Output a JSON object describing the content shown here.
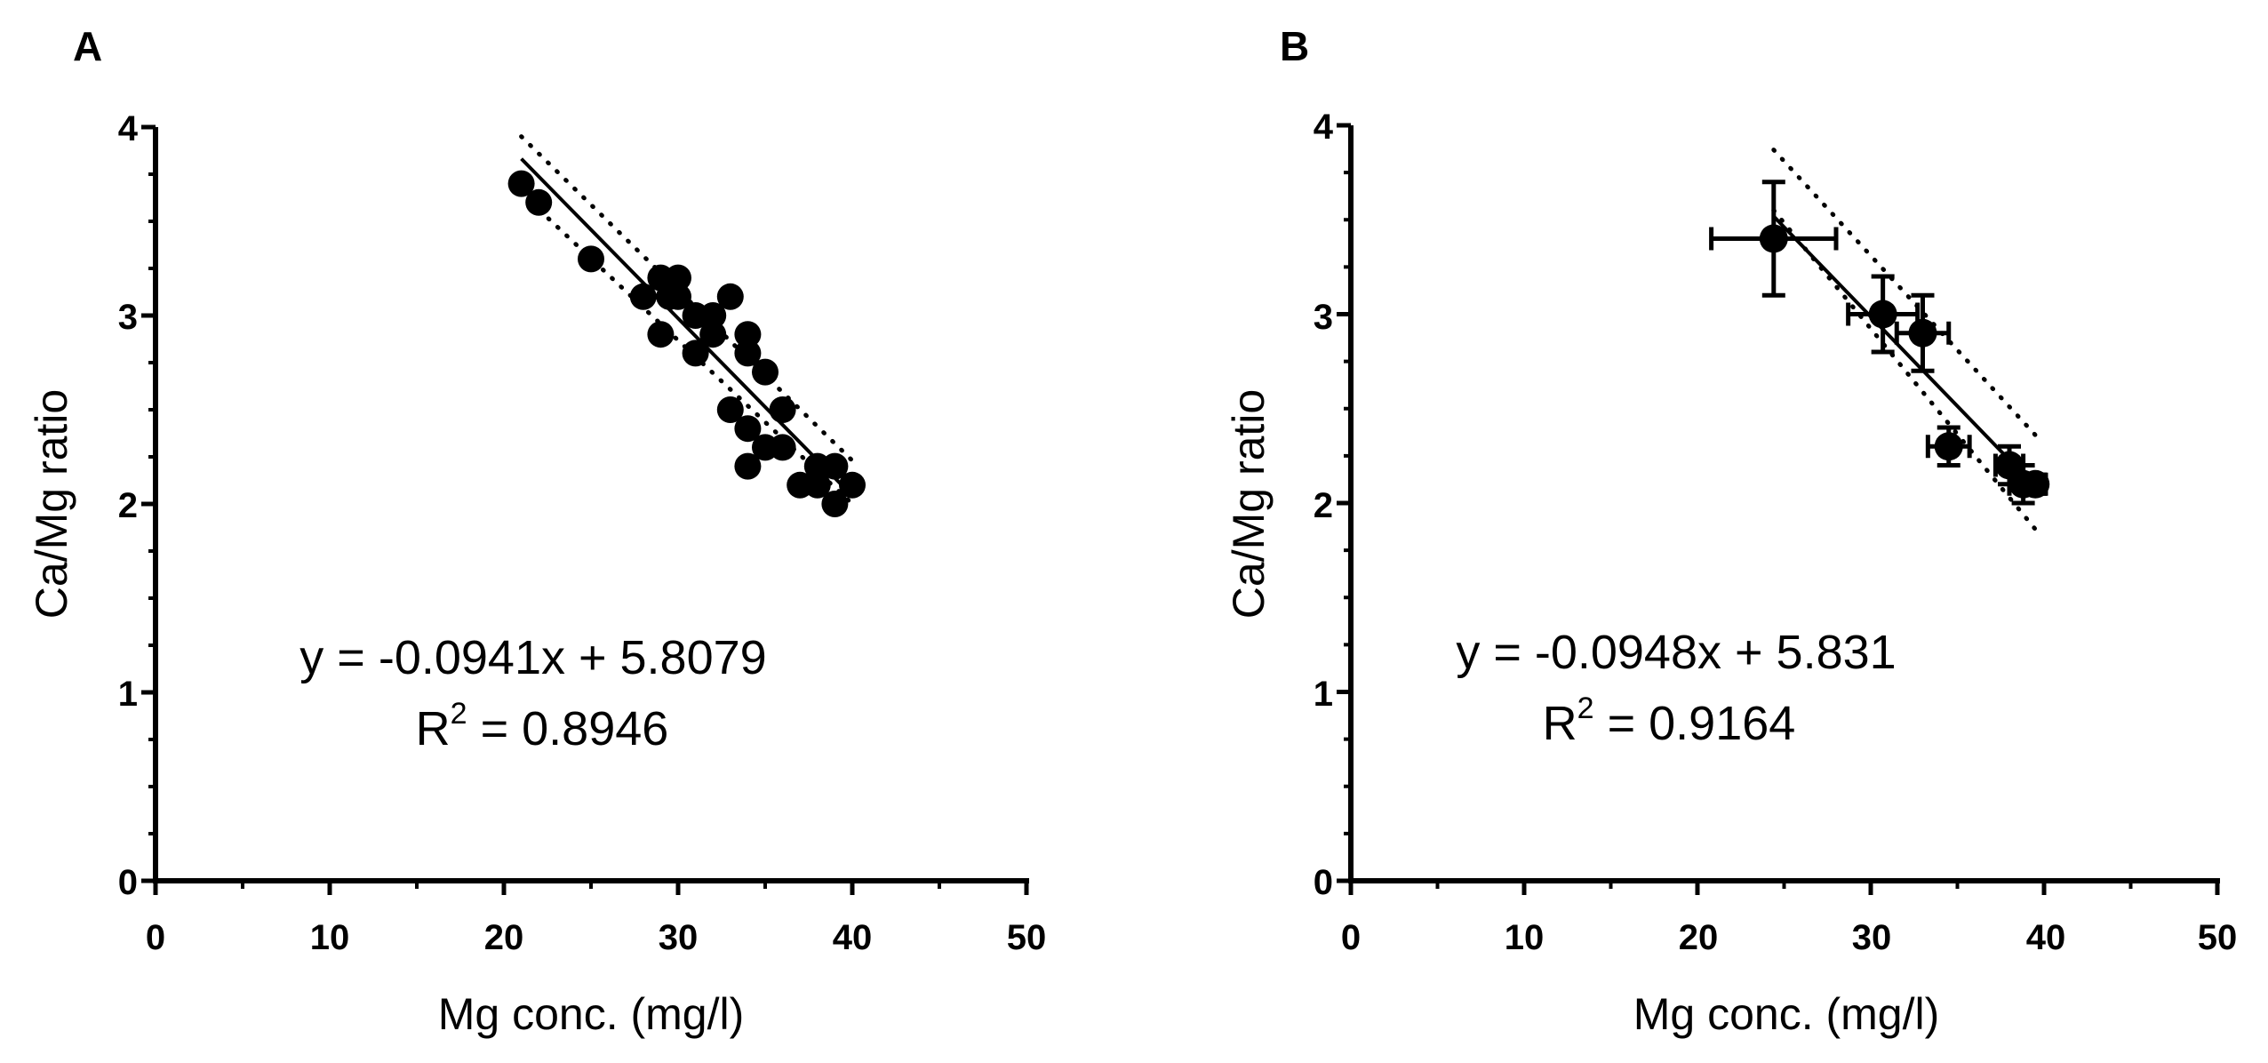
{
  "chart_data": [
    {
      "panel": "A",
      "type": "scatter",
      "xlabel": "Mg conc. (mg/l)",
      "ylabel": "Ca/Mg ratio",
      "xlim": [
        0,
        50
      ],
      "ylim": [
        0,
        4
      ],
      "x_ticks": [
        0,
        10,
        20,
        30,
        40,
        50
      ],
      "y_ticks": [
        0,
        1,
        2,
        3,
        4
      ],
      "points": [
        {
          "x": 21,
          "y": 3.7
        },
        {
          "x": 22,
          "y": 3.6
        },
        {
          "x": 25,
          "y": 3.3
        },
        {
          "x": 28,
          "y": 3.1
        },
        {
          "x": 29,
          "y": 3.2
        },
        {
          "x": 29,
          "y": 2.9
        },
        {
          "x": 29.5,
          "y": 3.1
        },
        {
          "x": 30,
          "y": 3.2
        },
        {
          "x": 30,
          "y": 3.1
        },
        {
          "x": 31,
          "y": 3.0
        },
        {
          "x": 31,
          "y": 2.8
        },
        {
          "x": 32,
          "y": 3.0
        },
        {
          "x": 32,
          "y": 2.9
        },
        {
          "x": 33,
          "y": 3.1
        },
        {
          "x": 33,
          "y": 2.5
        },
        {
          "x": 34,
          "y": 2.9
        },
        {
          "x": 34,
          "y": 2.8
        },
        {
          "x": 34,
          "y": 2.4
        },
        {
          "x": 34,
          "y": 2.2
        },
        {
          "x": 35,
          "y": 2.7
        },
        {
          "x": 35,
          "y": 2.3
        },
        {
          "x": 36,
          "y": 2.5
        },
        {
          "x": 36,
          "y": 2.3
        },
        {
          "x": 37,
          "y": 2.1
        },
        {
          "x": 38,
          "y": 2.2
        },
        {
          "x": 38,
          "y": 2.1
        },
        {
          "x": 39,
          "y": 2.2
        },
        {
          "x": 39,
          "y": 2.0
        },
        {
          "x": 40,
          "y": 2.1
        }
      ],
      "regression": {
        "slope": -0.0941,
        "intercept": 5.8079,
        "x_range": [
          21,
          40
        ]
      },
      "confidence_band": {
        "x": [
          21,
          40
        ],
        "upper": [
          3.95,
          2.23
        ],
        "lower": [
          3.65,
          2.0
        ]
      },
      "equation": "y = -0.0941x + 5.8079",
      "r2_label": "R",
      "r2_exp": "2",
      "r2_value": " = 0.8946"
    },
    {
      "panel": "B",
      "type": "scatter",
      "xlabel": "Mg conc. (mg/l)",
      "ylabel": "Ca/Mg ratio",
      "xlim": [
        0,
        50
      ],
      "ylim": [
        0,
        4
      ],
      "x_ticks": [
        0,
        10,
        20,
        30,
        40,
        50
      ],
      "y_ticks": [
        0,
        1,
        2,
        3,
        4
      ],
      "points": [
        {
          "x": 24.4,
          "y": 3.4,
          "xerr": 3.6,
          "yerr": 0.3
        },
        {
          "x": 30.7,
          "y": 3.0,
          "xerr": 2.0,
          "yerr": 0.2
        },
        {
          "x": 33.0,
          "y": 2.9,
          "xerr": 1.5,
          "yerr": 0.2
        },
        {
          "x": 34.5,
          "y": 2.3,
          "xerr": 1.2,
          "yerr": 0.1
        },
        {
          "x": 38.0,
          "y": 2.2,
          "xerr": 0.8,
          "yerr": 0.1
        },
        {
          "x": 38.8,
          "y": 2.1,
          "xerr": 0.8,
          "yerr": 0.1
        },
        {
          "x": 39.5,
          "y": 2.1,
          "xerr": 0.6,
          "yerr": 0.05
        }
      ],
      "regression": {
        "slope": -0.0948,
        "intercept": 5.831,
        "x_range": [
          24.4,
          39.5
        ]
      },
      "confidence_band": {
        "x": [
          24.4,
          39.6
        ],
        "upper": [
          3.87,
          2.35
        ],
        "lower": [
          3.55,
          1.85
        ]
      },
      "equation": "y = -0.0948x + 5.831",
      "r2_label": "R",
      "r2_exp": "2",
      "r2_value": " = 0.9164"
    }
  ]
}
